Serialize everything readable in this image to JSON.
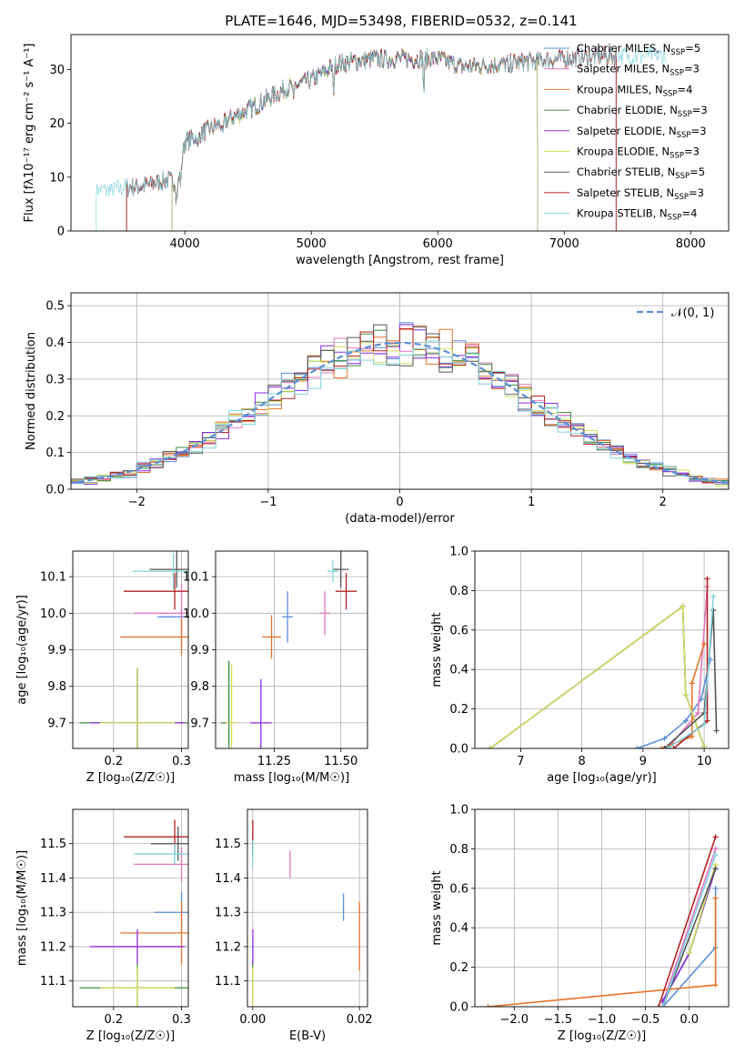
{
  "title": "PLATE=1646, MJD=53498, FIBERID=0532, z=0.141",
  "palette": {
    "Chabrier MILES": "#5b8fd6",
    "Salpeter MILES": "#e377c2",
    "Kroupa MILES": "#e6742a",
    "Chabrier ELODIE": "#3f8f3f",
    "Salpeter ELODIE": "#8a2be2",
    "Kroupa ELODIE": "#d2e05a",
    "Chabrier STELIB": "#555555",
    "Salpeter STELIB": "#b22222",
    "Kroupa STELIB": "#7fd3dd"
  },
  "legend": {
    "entries": [
      {
        "model": "Chabrier MILES",
        "nssp": "5"
      },
      {
        "model": "Salpeter MILES",
        "nssp": "3"
      },
      {
        "model": "Kroupa MILES",
        "nssp": "4"
      },
      {
        "model": "Chabrier ELODIE",
        "nssp": "3"
      },
      {
        "model": "Salpeter ELODIE",
        "nssp": "3"
      },
      {
        "model": "Kroupa ELODIE",
        "nssp": "3"
      },
      {
        "model": "Chabrier STELIB",
        "nssp": "5"
      },
      {
        "model": "Salpeter STELIB",
        "nssp": "3"
      },
      {
        "model": "Kroupa STELIB",
        "nssp": "4"
      }
    ],
    "nssp_label": "N",
    "nssp_sub": "SSP"
  },
  "chart_data": [
    {
      "id": "spectrum",
      "type": "line",
      "xlabel": "wavelength [Angstrom, rest frame]",
      "ylabel": "Flux [fλ10⁻¹⁷ erg cm⁻² s⁻¹ A⁻¹]",
      "xlim": [
        3100,
        8300
      ],
      "ylim": [
        0,
        36.5
      ],
      "xticks": [
        4000,
        5000,
        6000,
        7000,
        8000
      ],
      "yticks": [
        0,
        10,
        20,
        30
      ],
      "grid": false,
      "legend_position": "right",
      "continuum_knots": [
        [
          3300,
          7.5
        ],
        [
          3500,
          8.0
        ],
        [
          3700,
          8.5
        ],
        [
          3850,
          9.5
        ],
        [
          3950,
          9.0
        ],
        [
          4000,
          16.5
        ],
        [
          4200,
          19
        ],
        [
          4500,
          22.5
        ],
        [
          4800,
          26.5
        ],
        [
          5000,
          28
        ],
        [
          5200,
          31
        ],
        [
          5500,
          32
        ],
        [
          5800,
          32
        ],
        [
          6000,
          32
        ],
        [
          6200,
          30.5
        ],
        [
          6500,
          31
        ],
        [
          6700,
          31.5
        ],
        [
          7000,
          32
        ],
        [
          7300,
          32.5
        ],
        [
          7500,
          32.5
        ]
      ],
      "dips": [
        [
          3934,
          4
        ],
        [
          3969,
          3
        ],
        [
          4102,
          3
        ],
        [
          4300,
          4
        ],
        [
          4861,
          4
        ],
        [
          5175,
          6
        ],
        [
          5890,
          7
        ],
        [
          6563,
          3
        ]
      ],
      "model_cutoffs": [
        {
          "model": "Chabrier MILES",
          "start": 3540,
          "end": 7410
        },
        {
          "model": "Salpeter MILES",
          "start": 3540,
          "end": 7410
        },
        {
          "model": "Kroupa MILES",
          "start": 3540,
          "end": 7410
        },
        {
          "model": "Chabrier ELODIE",
          "start": 3900,
          "end": 6790
        },
        {
          "model": "Salpeter ELODIE",
          "start": 3900,
          "end": 6790
        },
        {
          "model": "Kroupa ELODIE",
          "start": 3900,
          "end": 6790
        },
        {
          "model": "Chabrier STELIB",
          "start": 3540,
          "end": 7410
        },
        {
          "model": "Salpeter STELIB",
          "start": 3540,
          "end": 7410
        },
        {
          "model": "Kroupa STELIB",
          "start": 3300,
          "end": 7800
        }
      ]
    },
    {
      "id": "residuals",
      "type": "line",
      "xlabel": "(data-model)/error",
      "ylabel": "Normed distribution",
      "xlim": [
        -2.5,
        2.5
      ],
      "ylim": [
        0,
        0.535
      ],
      "xticks": [
        -2,
        -1,
        0,
        1,
        2
      ],
      "yticks": [
        0.0,
        0.1,
        0.2,
        0.3,
        0.4,
        0.5
      ],
      "grid": true,
      "legend_position": "top-right",
      "legend_label": "𝒩(0, 1)",
      "bin_width": 0.1
    },
    {
      "id": "age-vs-Z",
      "type": "scatter",
      "xlabel": "Z [log₁₀(Z/Z☉)]",
      "ylabel": "age  [log₁₀(age/yr)]",
      "xlim": [
        0.14,
        0.31
      ],
      "ylim": [
        9.63,
        10.17
      ],
      "xticks": [
        0.2,
        0.3
      ],
      "yticks": [
        9.7,
        9.8,
        9.9,
        10.0,
        10.1
      ],
      "grid": true,
      "points": [
        {
          "model": "Chabrier MILES",
          "x": 0.3,
          "y": 9.99,
          "xerr": 0.035,
          "yerr": 0.03
        },
        {
          "model": "Salpeter MILES",
          "x": 0.3,
          "y": 10.0,
          "xerr": 0.07,
          "yerr": 0.08
        },
        {
          "model": "Kroupa MILES",
          "x": 0.3,
          "y": 9.935,
          "xerr": 0.09,
          "yerr": 0.05
        },
        {
          "model": "Chabrier ELODIE",
          "x": 0.235,
          "y": 9.7,
          "xerr": 0.085,
          "yerr": 0.15
        },
        {
          "model": "Salpeter ELODIE",
          "x": 0.235,
          "y": 9.7,
          "xerr": 0.07,
          "yerr": 0.15
        },
        {
          "model": "Kroupa ELODIE",
          "x": 0.235,
          "y": 9.7,
          "xerr": 0.055,
          "yerr": 0.15
        },
        {
          "model": "Chabrier STELIB",
          "x": 0.293,
          "y": 10.12,
          "xerr": 0.04,
          "yerr": 0.05
        },
        {
          "model": "Salpeter STELIB",
          "x": 0.29,
          "y": 10.06,
          "xerr": 0.075,
          "yerr": 0.05
        },
        {
          "model": "Kroupa STELIB",
          "x": 0.288,
          "y": 10.115,
          "xerr": 0.06,
          "yerr": 0.05
        }
      ]
    },
    {
      "id": "age-vs-mass",
      "type": "scatter",
      "xlabel": "mass [log₁₀(M/M☉)]",
      "ylabel": "",
      "xlim": [
        11.03,
        11.6
      ],
      "ylim": [
        9.63,
        10.17
      ],
      "xticks": [
        11.25,
        11.5
      ],
      "xticklabels": [
        "11.25",
        "11.50"
      ],
      "yticks": [
        9.7,
        9.8,
        9.9,
        10.0,
        10.1
      ],
      "grid": true,
      "points": [
        {
          "model": "Chabrier MILES",
          "x": 11.3,
          "y": 9.99,
          "xerr": 0.02,
          "yerr": 0.07
        },
        {
          "model": "Salpeter MILES",
          "x": 11.44,
          "y": 10.0,
          "xerr": 0.02,
          "yerr": 0.06
        },
        {
          "model": "Kroupa MILES",
          "x": 11.24,
          "y": 9.935,
          "xerr": 0.035,
          "yerr": 0.06
        },
        {
          "model": "Chabrier ELODIE",
          "x": 11.08,
          "y": 9.7,
          "xerr": 0.03,
          "yerr": 0.17
        },
        {
          "model": "Salpeter ELODIE",
          "x": 11.2,
          "y": 9.7,
          "xerr": 0.04,
          "yerr": 0.12
        },
        {
          "model": "Kroupa ELODIE",
          "x": 11.09,
          "y": 9.7,
          "xerr": 0.02,
          "yerr": 0.16
        },
        {
          "model": "Chabrier STELIB",
          "x": 11.5,
          "y": 10.12,
          "xerr": 0.03,
          "yerr": 0.05
        },
        {
          "model": "Salpeter STELIB",
          "x": 11.52,
          "y": 10.06,
          "xerr": 0.04,
          "yerr": 0.05
        },
        {
          "model": "Kroupa STELIB",
          "x": 11.47,
          "y": 10.115,
          "xerr": 0.02,
          "yerr": 0.03
        }
      ]
    },
    {
      "id": "massweight-vs-age",
      "type": "line",
      "xlabel": "age  [log₁₀(age/yr)]",
      "ylabel": "mass weight",
      "xlim": [
        6.25,
        10.4
      ],
      "ylim": [
        0,
        1.0
      ],
      "xticks": [
        7,
        8,
        9,
        10
      ],
      "yticks": [
        0.0,
        0.2,
        0.4,
        0.6,
        0.8,
        1.0
      ],
      "grid": true,
      "series": [
        {
          "model": "Chabrier MILES",
          "x": [
            8.9,
            9.35,
            9.7,
            9.95,
            10.1
          ],
          "y": [
            0.0,
            0.05,
            0.14,
            0.25,
            0.45
          ]
        },
        {
          "model": "Salpeter MILES",
          "x": [
            9.4,
            9.9,
            10.05
          ],
          "y": [
            0.0,
            0.18,
            0.82
          ]
        },
        {
          "model": "Kroupa MILES",
          "x": [
            9.3,
            9.8,
            9.8,
            10.0
          ],
          "y": [
            0.0,
            0.06,
            0.33,
            0.53
          ]
        },
        {
          "model": "Chabrier ELODIE",
          "x": [
            6.5,
            9.65,
            9.7,
            10.0
          ],
          "y": [
            0.0,
            0.72,
            0.27,
            0.01
          ]
        },
        {
          "model": "Salpeter ELODIE",
          "x": [
            6.5,
            9.65,
            9.7,
            10.0
          ],
          "y": [
            0.0,
            0.72,
            0.27,
            0.01
          ]
        },
        {
          "model": "Kroupa ELODIE",
          "x": [
            6.5,
            9.65,
            9.7,
            10.0
          ],
          "y": [
            0.0,
            0.72,
            0.27,
            0.01
          ]
        },
        {
          "model": "Chabrier STELIB",
          "x": [
            9.35,
            10.0,
            10.15,
            10.2
          ],
          "y": [
            0.0,
            0.18,
            0.7,
            0.09
          ]
        },
        {
          "model": "Salpeter STELIB",
          "x": [
            9.5,
            10.05,
            10.05
          ],
          "y": [
            0.0,
            0.14,
            0.86
          ]
        },
        {
          "model": "Kroupa STELIB",
          "x": [
            9.4,
            10.0,
            10.15
          ],
          "y": [
            0.0,
            0.12,
            0.77
          ]
        }
      ]
    },
    {
      "id": "mass-vs-Z",
      "type": "scatter",
      "xlabel": "Z [log₁₀(Z/Z☉)]",
      "ylabel": "mass [log₁₀(M/M☉)]",
      "xlim": [
        0.14,
        0.31
      ],
      "ylim": [
        11.025,
        11.6
      ],
      "xticks": [
        0.2,
        0.3
      ],
      "yticks": [
        11.1,
        11.2,
        11.3,
        11.4,
        11.5
      ],
      "grid": true,
      "points": [
        {
          "model": "Chabrier MILES",
          "x": 0.3,
          "y": 11.3,
          "xerr": 0.04,
          "yerr": 0.06
        },
        {
          "model": "Salpeter MILES",
          "x": 0.3,
          "y": 11.44,
          "xerr": 0.07,
          "yerr": 0.05
        },
        {
          "model": "Kroupa MILES",
          "x": 0.3,
          "y": 11.24,
          "xerr": 0.09,
          "yerr": 0.09
        },
        {
          "model": "Chabrier ELODIE",
          "x": 0.235,
          "y": 11.08,
          "xerr": 0.085,
          "yerr": 0.07
        },
        {
          "model": "Salpeter ELODIE",
          "x": 0.235,
          "y": 11.2,
          "xerr": 0.07,
          "yerr": 0.05
        },
        {
          "model": "Kroupa ELODIE",
          "x": 0.235,
          "y": 11.08,
          "xerr": 0.055,
          "yerr": 0.06
        },
        {
          "model": "Chabrier STELIB",
          "x": 0.295,
          "y": 11.5,
          "xerr": 0.04,
          "yerr": 0.05
        },
        {
          "model": "Salpeter STELIB",
          "x": 0.29,
          "y": 11.52,
          "xerr": 0.075,
          "yerr": 0.05
        },
        {
          "model": "Kroupa STELIB",
          "x": 0.29,
          "y": 11.47,
          "xerr": 0.06,
          "yerr": 0.03
        }
      ]
    },
    {
      "id": "mass-vs-ebv",
      "type": "scatter",
      "xlabel": "E(B-V)",
      "ylabel": "",
      "xlim": [
        -0.001,
        0.0215
      ],
      "ylim": [
        11.025,
        11.6
      ],
      "xticks": [
        0.0,
        0.02
      ],
      "xticklabels": [
        "0.00",
        "0.02"
      ],
      "yticks": [
        11.1,
        11.2,
        11.3,
        11.4,
        11.5
      ],
      "grid": true,
      "points": [
        {
          "model": "Chabrier MILES",
          "x": 0.017,
          "y": 11.315,
          "xerr": 0,
          "yerr": 0.04
        },
        {
          "model": "Salpeter MILES",
          "x": 0.007,
          "y": 11.44,
          "xerr": 0,
          "yerr": 0.04
        },
        {
          "model": "Kroupa MILES",
          "x": 0.02,
          "y": 11.23,
          "xerr": 0,
          "yerr": 0.1
        },
        {
          "model": "Chabrier ELODIE",
          "x": 0.0,
          "y": 11.1,
          "xerr": 0,
          "yerr": 0.06
        },
        {
          "model": "Salpeter ELODIE",
          "x": 0.0,
          "y": 11.2,
          "xerr": 0,
          "yerr": 0.05
        },
        {
          "model": "Kroupa ELODIE",
          "x": 0.0,
          "y": 11.08,
          "xerr": 0,
          "yerr": 0.06
        },
        {
          "model": "Chabrier STELIB",
          "x": 0.0,
          "y": 11.5,
          "xerr": 0,
          "yerr": 0.04
        },
        {
          "model": "Salpeter STELIB",
          "x": 0.0,
          "y": 11.52,
          "xerr": 0,
          "yerr": 0.05
        },
        {
          "model": "Kroupa STELIB",
          "x": 0.0,
          "y": 11.47,
          "xerr": 0,
          "yerr": 0.04
        }
      ]
    },
    {
      "id": "massweight-vs-Z",
      "type": "line",
      "xlabel": "Z [log₁₀(Z/Z☉)]",
      "ylabel": "mass weight",
      "xlim": [
        -2.45,
        0.45
      ],
      "ylim": [
        0,
        1.0
      ],
      "xticks": [
        -2.0,
        -1.5,
        -1.0,
        -0.5,
        0.0
      ],
      "yticks": [
        0.0,
        0.2,
        0.4,
        0.6,
        0.8,
        1.0
      ],
      "grid": true,
      "series": [
        {
          "model": "Chabrier MILES",
          "x": [
            -0.3,
            0.3,
            0.3
          ],
          "y": [
            0.0,
            0.3,
            0.6
          ]
        },
        {
          "model": "Salpeter MILES",
          "x": [
            -0.3,
            0.3
          ],
          "y": [
            0.02,
            0.8
          ]
        },
        {
          "model": "Kroupa MILES",
          "x": [
            -2.3,
            0.3,
            0.3
          ],
          "y": [
            0.0,
            0.11,
            0.55
          ]
        },
        {
          "model": "Chabrier ELODIE",
          "x": [
            -0.3,
            0.0,
            0.3
          ],
          "y": [
            0.03,
            0.27,
            0.7
          ]
        },
        {
          "model": "Salpeter ELODIE",
          "x": [
            -0.3,
            0.0,
            0.3
          ],
          "y": [
            0.03,
            0.27,
            0.7
          ]
        },
        {
          "model": "Kroupa ELODIE",
          "x": [
            0.0,
            0.3
          ],
          "y": [
            0.27,
            0.72
          ]
        },
        {
          "model": "Chabrier STELIB",
          "x": [
            -0.3,
            0.3
          ],
          "y": [
            0.0,
            0.7
          ]
        },
        {
          "model": "Salpeter STELIB",
          "x": [
            -0.35,
            0.3
          ],
          "y": [
            0.0,
            0.86
          ]
        },
        {
          "model": "Kroupa STELIB",
          "x": [
            -0.3,
            0.3
          ],
          "y": [
            0.0,
            0.77
          ]
        }
      ]
    }
  ]
}
